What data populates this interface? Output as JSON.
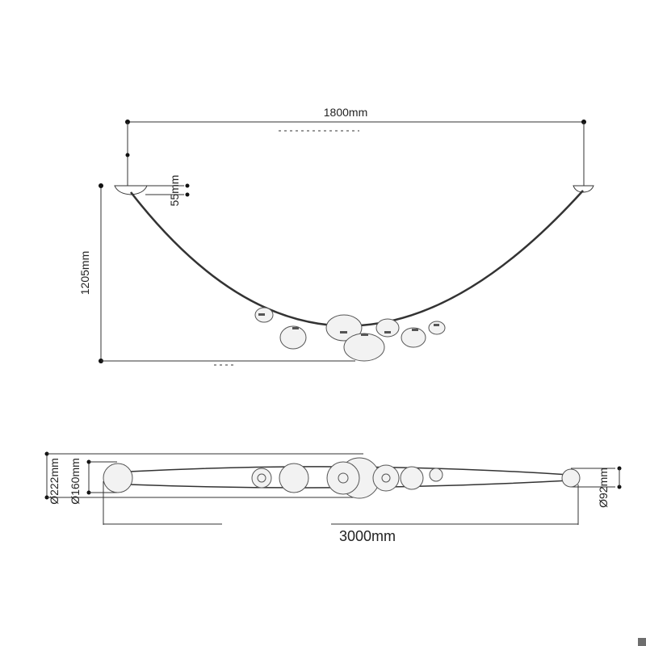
{
  "dimensions": {
    "top_width": "1800mm",
    "canopy_height": "55mm",
    "drop_height": "1205mm",
    "large_diameter": "Ø222mm",
    "medium_diameter": "Ø160mm",
    "small_diameter": "Ø92mm",
    "total_length": "3000mm"
  },
  "colors": {
    "line": "#333333",
    "globe_fill": "#f2f2f2",
    "corner_mark": "#6e6e6e"
  }
}
